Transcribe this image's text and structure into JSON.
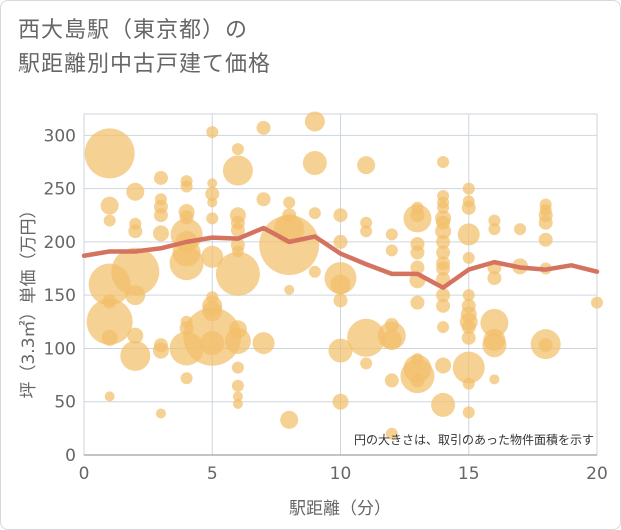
{
  "title": {
    "line1": "西大島駅（東京都）の",
    "line2": "駅距離別中古戸建て価格"
  },
  "colors": {
    "bubble": "#f3bf6b",
    "line": "#d4735f",
    "grid": "#cdd6de",
    "text": "#666666"
  },
  "chart_data": {
    "type": "scatter",
    "title": "西大島駅（東京都）の駅距離別中古戸建て価格",
    "xlabel": "駅距離（分）",
    "ylabel": "坪（3.3㎡）単価（万円）",
    "xlim": [
      0,
      20
    ],
    "ylim": [
      0,
      320
    ],
    "x_ticks": [
      0,
      5,
      10,
      15,
      20
    ],
    "y_ticks": [
      0,
      50,
      100,
      150,
      200,
      250,
      300
    ],
    "grid": true,
    "annotation": "円の大きさは、取引のあった物件面積を示す",
    "bubbles": [
      {
        "x": 1,
        "y": 283,
        "r": 25
      },
      {
        "x": 1,
        "y": 234,
        "r": 9
      },
      {
        "x": 1,
        "y": 220,
        "r": 6
      },
      {
        "x": 1,
        "y": 160,
        "r": 21
      },
      {
        "x": 1,
        "y": 125,
        "r": 23
      },
      {
        "x": 1,
        "y": 144,
        "r": 7
      },
      {
        "x": 1,
        "y": 110,
        "r": 8
      },
      {
        "x": 1,
        "y": 55,
        "r": 5
      },
      {
        "x": 2,
        "y": 247,
        "r": 9
      },
      {
        "x": 2,
        "y": 217,
        "r": 6
      },
      {
        "x": 2,
        "y": 210,
        "r": 7
      },
      {
        "x": 2,
        "y": 172,
        "r": 24
      },
      {
        "x": 2,
        "y": 150,
        "r": 10
      },
      {
        "x": 2,
        "y": 93,
        "r": 15
      },
      {
        "x": 2,
        "y": 112,
        "r": 8
      },
      {
        "x": 3,
        "y": 260,
        "r": 7
      },
      {
        "x": 3,
        "y": 240,
        "r": 6
      },
      {
        "x": 3,
        "y": 233,
        "r": 7
      },
      {
        "x": 3,
        "y": 225,
        "r": 7
      },
      {
        "x": 3,
        "y": 208,
        "r": 8
      },
      {
        "x": 3,
        "y": 103,
        "r": 7
      },
      {
        "x": 3,
        "y": 98,
        "r": 8
      },
      {
        "x": 3,
        "y": 39,
        "r": 5
      },
      {
        "x": 4,
        "y": 257,
        "r": 6
      },
      {
        "x": 4,
        "y": 252,
        "r": 6
      },
      {
        "x": 4,
        "y": 228,
        "r": 8
      },
      {
        "x": 4,
        "y": 223,
        "r": 7
      },
      {
        "x": 4,
        "y": 207,
        "r": 16
      },
      {
        "x": 4,
        "y": 200,
        "r": 11
      },
      {
        "x": 4,
        "y": 190,
        "r": 14
      },
      {
        "x": 4,
        "y": 180,
        "r": 17
      },
      {
        "x": 4,
        "y": 125,
        "r": 6
      },
      {
        "x": 4,
        "y": 119,
        "r": 7
      },
      {
        "x": 4,
        "y": 100,
        "r": 17
      },
      {
        "x": 4,
        "y": 72,
        "r": 6
      },
      {
        "x": 5,
        "y": 303,
        "r": 6
      },
      {
        "x": 5,
        "y": 255,
        "r": 5
      },
      {
        "x": 5,
        "y": 245,
        "r": 7
      },
      {
        "x": 5,
        "y": 237,
        "r": 5
      },
      {
        "x": 5,
        "y": 222,
        "r": 6
      },
      {
        "x": 5,
        "y": 186,
        "r": 11
      },
      {
        "x": 5,
        "y": 148,
        "r": 6
      },
      {
        "x": 5,
        "y": 140,
        "r": 10
      },
      {
        "x": 5,
        "y": 135,
        "r": 10
      },
      {
        "x": 5,
        "y": 111,
        "r": 29
      },
      {
        "x": 5,
        "y": 105,
        "r": 12
      },
      {
        "x": 6,
        "y": 287,
        "r": 6
      },
      {
        "x": 6,
        "y": 267,
        "r": 15
      },
      {
        "x": 6,
        "y": 225,
        "r": 8
      },
      {
        "x": 6,
        "y": 218,
        "r": 7
      },
      {
        "x": 6,
        "y": 211,
        "r": 7
      },
      {
        "x": 6,
        "y": 197,
        "r": 7
      },
      {
        "x": 6,
        "y": 191,
        "r": 6
      },
      {
        "x": 6,
        "y": 170,
        "r": 22
      },
      {
        "x": 6,
        "y": 118,
        "r": 9
      },
      {
        "x": 6,
        "y": 107,
        "r": 13
      },
      {
        "x": 6,
        "y": 82,
        "r": 6
      },
      {
        "x": 6,
        "y": 65,
        "r": 6
      },
      {
        "x": 6,
        "y": 55,
        "r": 5
      },
      {
        "x": 6,
        "y": 48,
        "r": 5
      },
      {
        "x": 7,
        "y": 307,
        "r": 7
      },
      {
        "x": 7,
        "y": 240,
        "r": 7
      },
      {
        "x": 7,
        "y": 105,
        "r": 11
      },
      {
        "x": 8,
        "y": 237,
        "r": 6
      },
      {
        "x": 8,
        "y": 225,
        "r": 7
      },
      {
        "x": 8,
        "y": 212,
        "r": 15
      },
      {
        "x": 8,
        "y": 197,
        "r": 30
      },
      {
        "x": 8,
        "y": 155,
        "r": 5
      },
      {
        "x": 8,
        "y": 33,
        "r": 9
      },
      {
        "x": 9,
        "y": 313,
        "r": 10
      },
      {
        "x": 9,
        "y": 274,
        "r": 12
      },
      {
        "x": 9,
        "y": 227,
        "r": 6
      },
      {
        "x": 9,
        "y": 172,
        "r": 6
      },
      {
        "x": 10,
        "y": 225,
        "r": 7
      },
      {
        "x": 10,
        "y": 200,
        "r": 7
      },
      {
        "x": 10,
        "y": 166,
        "r": 16
      },
      {
        "x": 10,
        "y": 160,
        "r": 10
      },
      {
        "x": 10,
        "y": 145,
        "r": 7
      },
      {
        "x": 10,
        "y": 98,
        "r": 12
      },
      {
        "x": 10,
        "y": 50,
        "r": 8
      },
      {
        "x": 11,
        "y": 272,
        "r": 9
      },
      {
        "x": 11,
        "y": 218,
        "r": 6
      },
      {
        "x": 11,
        "y": 210,
        "r": 6
      },
      {
        "x": 11,
        "y": 110,
        "r": 19
      },
      {
        "x": 11,
        "y": 86,
        "r": 6
      },
      {
        "x": 12,
        "y": 207,
        "r": 6
      },
      {
        "x": 12,
        "y": 192,
        "r": 6
      },
      {
        "x": 12,
        "y": 122,
        "r": 7
      },
      {
        "x": 12,
        "y": 112,
        "r": 14
      },
      {
        "x": 12,
        "y": 108,
        "r": 10
      },
      {
        "x": 12,
        "y": 70,
        "r": 7
      },
      {
        "x": 12,
        "y": 20,
        "r": 6
      },
      {
        "x": 13,
        "y": 232,
        "r": 6
      },
      {
        "x": 13,
        "y": 225,
        "r": 7
      },
      {
        "x": 13,
        "y": 222,
        "r": 14
      },
      {
        "x": 13,
        "y": 198,
        "r": 7
      },
      {
        "x": 13,
        "y": 190,
        "r": 7
      },
      {
        "x": 13,
        "y": 176,
        "r": 7
      },
      {
        "x": 13,
        "y": 164,
        "r": 8
      },
      {
        "x": 13,
        "y": 143,
        "r": 7
      },
      {
        "x": 13,
        "y": 90,
        "r": 6
      },
      {
        "x": 13,
        "y": 81,
        "r": 14
      },
      {
        "x": 13,
        "y": 74,
        "r": 17
      },
      {
        "x": 13,
        "y": 70,
        "r": 7
      },
      {
        "x": 14,
        "y": 275,
        "r": 6
      },
      {
        "x": 14,
        "y": 243,
        "r": 6
      },
      {
        "x": 14,
        "y": 237,
        "r": 6
      },
      {
        "x": 14,
        "y": 232,
        "r": 6
      },
      {
        "x": 14,
        "y": 222,
        "r": 8
      },
      {
        "x": 14,
        "y": 218,
        "r": 7
      },
      {
        "x": 14,
        "y": 210,
        "r": 8
      },
      {
        "x": 14,
        "y": 200,
        "r": 7
      },
      {
        "x": 14,
        "y": 190,
        "r": 7
      },
      {
        "x": 14,
        "y": 180,
        "r": 7
      },
      {
        "x": 14,
        "y": 175,
        "r": 7
      },
      {
        "x": 14,
        "y": 165,
        "r": 7
      },
      {
        "x": 14,
        "y": 150,
        "r": 7
      },
      {
        "x": 14,
        "y": 140,
        "r": 7
      },
      {
        "x": 14,
        "y": 120,
        "r": 6
      },
      {
        "x": 14,
        "y": 84,
        "r": 8
      },
      {
        "x": 14,
        "y": 47,
        "r": 12
      },
      {
        "x": 15,
        "y": 250,
        "r": 6
      },
      {
        "x": 15,
        "y": 238,
        "r": 6
      },
      {
        "x": 15,
        "y": 232,
        "r": 7
      },
      {
        "x": 15,
        "y": 207,
        "r": 11
      },
      {
        "x": 15,
        "y": 185,
        "r": 6
      },
      {
        "x": 15,
        "y": 150,
        "r": 6
      },
      {
        "x": 15,
        "y": 140,
        "r": 7
      },
      {
        "x": 15,
        "y": 132,
        "r": 8
      },
      {
        "x": 15,
        "y": 125,
        "r": 9
      },
      {
        "x": 15,
        "y": 120,
        "r": 7
      },
      {
        "x": 15,
        "y": 110,
        "r": 7
      },
      {
        "x": 15,
        "y": 82,
        "r": 16
      },
      {
        "x": 15,
        "y": 67,
        "r": 6
      },
      {
        "x": 15,
        "y": 40,
        "r": 6
      },
      {
        "x": 16,
        "y": 220,
        "r": 6
      },
      {
        "x": 16,
        "y": 212,
        "r": 6
      },
      {
        "x": 16,
        "y": 176,
        "r": 7
      },
      {
        "x": 16,
        "y": 166,
        "r": 7
      },
      {
        "x": 16,
        "y": 124,
        "r": 14
      },
      {
        "x": 16,
        "y": 108,
        "r": 11
      },
      {
        "x": 16,
        "y": 103,
        "r": 12
      },
      {
        "x": 16,
        "y": 71,
        "r": 5
      },
      {
        "x": 17,
        "y": 212,
        "r": 6
      },
      {
        "x": 17,
        "y": 177,
        "r": 8
      },
      {
        "x": 18,
        "y": 235,
        "r": 6
      },
      {
        "x": 18,
        "y": 230,
        "r": 6
      },
      {
        "x": 18,
        "y": 225,
        "r": 7
      },
      {
        "x": 18,
        "y": 218,
        "r": 7
      },
      {
        "x": 18,
        "y": 202,
        "r": 7
      },
      {
        "x": 18,
        "y": 175,
        "r": 6
      },
      {
        "x": 18,
        "y": 104,
        "r": 15
      },
      {
        "x": 18,
        "y": 103,
        "r": 7
      },
      {
        "x": 20,
        "y": 143,
        "r": 6
      }
    ],
    "trend": {
      "x": [
        0,
        1,
        2,
        3,
        4,
        5,
        6,
        7,
        8,
        9,
        10,
        11,
        12,
        13,
        14,
        15,
        16,
        17,
        18,
        19,
        20
      ],
      "y": [
        187,
        191,
        191,
        194,
        200,
        204,
        203,
        213,
        200,
        205,
        189,
        179,
        170,
        170,
        157,
        174,
        181,
        176,
        174,
        178,
        172
      ]
    }
  }
}
